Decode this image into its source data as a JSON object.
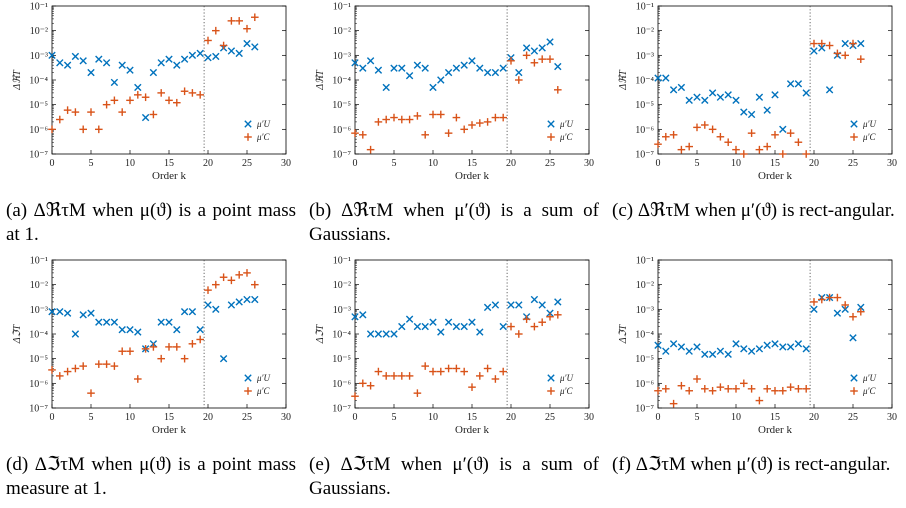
{
  "colors": {
    "mu_U": "#0072BD",
    "mu_C": "#D95319",
    "axis": "#000000",
    "divider": "#444444"
  },
  "chart_data": [
    {
      "type": "scatter",
      "caption": "(a)  ΔℜτΜ  when  μ(ϑ)  is  a point mass at 1.",
      "ylabel": "ΔℜT",
      "xlabel": "Order k",
      "xlim": [
        0,
        30
      ],
      "ylim_log10": [
        -7,
        -1
      ],
      "yscale": "log",
      "divider_x": 19.5,
      "series": [
        {
          "name": "μ′U",
          "marker": "x",
          "x": [
            0,
            1,
            2,
            3,
            4,
            5,
            6,
            7,
            8,
            9,
            10,
            11,
            12,
            13,
            14,
            15,
            16,
            17,
            18,
            19,
            20,
            21,
            22,
            23,
            24,
            25,
            26
          ],
          "y": [
            0.001,
            0.0005,
            0.0004,
            0.0009,
            0.0006,
            0.0002,
            0.0007,
            0.0005,
            8e-05,
            0.0004,
            0.00025,
            5e-05,
            3e-06,
            0.0002,
            0.0005,
            0.0007,
            0.0004,
            0.0007,
            0.001,
            0.0012,
            0.0008,
            0.0009,
            0.002,
            0.0015,
            0.0012,
            0.003,
            0.0022
          ]
        },
        {
          "name": "μ′C",
          "marker": "+",
          "x": [
            0,
            1,
            2,
            3,
            4,
            5,
            6,
            7,
            8,
            9,
            10,
            11,
            12,
            13,
            14,
            15,
            16,
            17,
            18,
            19,
            20,
            21,
            22,
            23,
            24,
            25,
            26
          ],
          "y": [
            1e-06,
            2.5e-06,
            6e-06,
            5e-06,
            1e-06,
            5e-06,
            1e-06,
            1e-05,
            1.5e-05,
            5e-06,
            1.5e-05,
            2.5e-05,
            2e-05,
            4e-06,
            3e-05,
            1.5e-05,
            1.2e-05,
            3.5e-05,
            3e-05,
            2.5e-05,
            0.004,
            0.01,
            0.0025,
            0.025,
            0.025,
            0.012,
            0.035
          ]
        }
      ]
    },
    {
      "type": "scatter",
      "caption": "(b)  ΔℜτΜ  when  μ′(ϑ)  is  a sum of Gaussians.",
      "ylabel": "ΔℜT",
      "xlabel": "Order k",
      "xlim": [
        0,
        30
      ],
      "ylim_log10": [
        -7,
        -1
      ],
      "yscale": "log",
      "divider_x": 19.5,
      "series": [
        {
          "name": "μ′U",
          "marker": "x",
          "x": [
            0,
            1,
            2,
            3,
            4,
            5,
            6,
            7,
            8,
            9,
            10,
            11,
            12,
            13,
            14,
            15,
            16,
            17,
            18,
            19,
            20,
            21,
            22,
            23,
            24,
            25,
            26
          ],
          "y": [
            0.0005,
            0.0003,
            0.0006,
            0.00025,
            5e-05,
            0.0003,
            0.0003,
            0.00015,
            0.0004,
            0.0003,
            5e-05,
            0.0001,
            0.0002,
            0.0003,
            0.0004,
            0.0006,
            0.0003,
            0.0002,
            0.0002,
            0.0003,
            0.0008,
            0.0002,
            0.002,
            0.0015,
            0.002,
            0.0035,
            0.00035
          ]
        },
        {
          "name": "μ′C",
          "marker": "+",
          "x": [
            0,
            1,
            2,
            3,
            4,
            5,
            6,
            7,
            8,
            9,
            10,
            11,
            12,
            13,
            14,
            15,
            16,
            17,
            18,
            19,
            20,
            21,
            22,
            23,
            24,
            25,
            26
          ],
          "y": [
            7e-07,
            6e-07,
            1.5e-07,
            2e-06,
            2.5e-06,
            3e-06,
            2.5e-06,
            2.5e-06,
            3.5e-06,
            6e-07,
            4e-06,
            4e-06,
            7e-07,
            3e-06,
            1e-06,
            1.5e-06,
            1.8e-06,
            2e-06,
            3e-06,
            3e-06,
            0.0006,
            0.0001,
            0.001,
            0.0005,
            0.0007,
            0.0007,
            4e-05
          ]
        }
      ]
    },
    {
      "type": "scatter",
      "caption": "(c)  ΔℜτΜ when μ′(ϑ) is rect-angular.",
      "ylabel": "ΔℜT",
      "xlabel": "Order k",
      "xlim": [
        0,
        30
      ],
      "ylim_log10": [
        -7,
        -1
      ],
      "yscale": "log",
      "divider_x": 19.5,
      "series": [
        {
          "name": "μ′U",
          "marker": "x",
          "x": [
            0,
            1,
            2,
            3,
            4,
            5,
            6,
            7,
            8,
            9,
            10,
            11,
            12,
            13,
            14,
            15,
            16,
            17,
            18,
            19,
            20,
            21,
            22,
            23,
            24,
            25,
            26
          ],
          "y": [
            0.00012,
            0.00012,
            4e-05,
            5e-05,
            1.5e-05,
            2e-05,
            1.5e-05,
            3e-05,
            2e-05,
            2.5e-05,
            1.5e-05,
            5e-06,
            4e-06,
            2e-05,
            6e-06,
            2.5e-05,
            1e-06,
            7e-05,
            7e-05,
            3e-05,
            0.0015,
            0.002,
            4e-05,
            0.001,
            0.003,
            0.0025,
            0.003
          ]
        },
        {
          "name": "μ′C",
          "marker": "+",
          "x": [
            0,
            1,
            2,
            3,
            4,
            5,
            6,
            7,
            8,
            9,
            10,
            11,
            12,
            13,
            14,
            15,
            16,
            17,
            18,
            19,
            20,
            21,
            22,
            23,
            24,
            25,
            26
          ],
          "y": [
            2.5e-07,
            5e-07,
            6e-07,
            1.5e-07,
            2e-07,
            1.2e-06,
            1.5e-06,
            1e-06,
            5e-07,
            3e-07,
            1.5e-07,
            1e-07,
            7e-07,
            1.5e-07,
            2e-07,
            6e-07,
            1e-07,
            7e-07,
            3e-07,
            1e-07,
            0.003,
            0.003,
            0.0025,
            0.0012,
            0.001,
            0.003,
            0.0007
          ]
        }
      ]
    },
    {
      "type": "scatter",
      "caption": "(d)  ΔℑτΜ  when  μ(ϑ)  is  a point mass measure at 1.",
      "ylabel": "ΔℑT",
      "xlabel": "Order k",
      "xlim": [
        0,
        30
      ],
      "ylim_log10": [
        -7,
        -1
      ],
      "yscale": "log",
      "divider_x": 19.5,
      "series": [
        {
          "name": "μ′U",
          "marker": "x",
          "x": [
            0,
            1,
            2,
            3,
            4,
            5,
            6,
            7,
            8,
            9,
            10,
            11,
            12,
            13,
            14,
            15,
            16,
            17,
            18,
            19,
            20,
            21,
            22,
            23,
            24,
            25,
            26
          ],
          "y": [
            0.0008,
            0.0008,
            0.0007,
            0.0001,
            0.0006,
            0.0007,
            0.0003,
            0.0003,
            0.0003,
            0.00015,
            0.00015,
            0.00012,
            2.5e-05,
            4e-05,
            0.0003,
            0.0003,
            0.00015,
            0.0008,
            0.0008,
            0.00015,
            0.0015,
            0.001,
            1e-05,
            0.0015,
            0.002,
            0.0025,
            0.0025
          ]
        },
        {
          "name": "μ′C",
          "marker": "+",
          "x": [
            0,
            1,
            2,
            3,
            4,
            5,
            6,
            7,
            8,
            9,
            10,
            11,
            12,
            13,
            14,
            15,
            16,
            17,
            18,
            19,
            20,
            21,
            22,
            23,
            24,
            25,
            26
          ],
          "y": [
            3.5e-06,
            2e-06,
            3e-06,
            4e-06,
            5e-06,
            4e-07,
            6e-06,
            6e-06,
            5e-06,
            2e-05,
            2e-05,
            1.5e-06,
            2.5e-05,
            3e-05,
            1e-05,
            3e-05,
            3e-05,
            1e-05,
            4e-05,
            6e-05,
            0.006,
            0.01,
            0.02,
            0.015,
            0.025,
            0.03,
            0.01
          ]
        }
      ]
    },
    {
      "type": "scatter",
      "caption": "(e) ΔℑτΜ when μ′(ϑ) is a sum of Gaussians.",
      "ylabel": "ΔℑT",
      "xlabel": "Order k",
      "xlim": [
        0,
        30
      ],
      "ylim_log10": [
        -7,
        -1
      ],
      "yscale": "log",
      "divider_x": 19.5,
      "series": [
        {
          "name": "μ′U",
          "marker": "x",
          "x": [
            0,
            1,
            2,
            3,
            4,
            5,
            6,
            7,
            8,
            9,
            10,
            11,
            12,
            13,
            14,
            15,
            16,
            17,
            18,
            19,
            20,
            21,
            22,
            23,
            24,
            25,
            26
          ],
          "y": [
            0.0005,
            0.0006,
            0.0001,
            0.0001,
            0.0001,
            0.0001,
            0.0002,
            0.0004,
            0.0002,
            0.0002,
            0.0003,
            0.00012,
            0.0003,
            0.0002,
            0.0002,
            0.0003,
            0.00012,
            0.0012,
            0.0015,
            0.0002,
            0.0015,
            0.0015,
            0.0005,
            0.0025,
            0.0015,
            0.0007,
            0.002
          ]
        },
        {
          "name": "μ′C",
          "marker": "+",
          "x": [
            0,
            1,
            2,
            3,
            4,
            5,
            6,
            7,
            8,
            9,
            10,
            11,
            12,
            13,
            14,
            15,
            16,
            17,
            18,
            19,
            20,
            21,
            22,
            23,
            24,
            25,
            26
          ],
          "y": [
            3e-07,
            1e-06,
            8e-07,
            3e-06,
            2e-06,
            2e-06,
            2e-06,
            2e-06,
            4e-07,
            5e-06,
            3e-06,
            3e-06,
            4e-06,
            4e-06,
            3e-06,
            7e-07,
            2e-06,
            4e-06,
            1.5e-06,
            3e-06,
            0.0002,
            0.0001,
            0.0004,
            0.0002,
            0.0003,
            0.0005,
            0.0006
          ]
        }
      ]
    },
    {
      "type": "scatter",
      "caption": "(f)  ΔℑτΜ when μ′(ϑ) is rect-angular.",
      "ylabel": "ΔℑT",
      "xlabel": "Order k",
      "xlim": [
        0,
        30
      ],
      "ylim_log10": [
        -7,
        -1
      ],
      "yscale": "log",
      "divider_x": 19.5,
      "series": [
        {
          "name": "μ′U",
          "marker": "x",
          "x": [
            0,
            1,
            2,
            3,
            4,
            5,
            6,
            7,
            8,
            9,
            10,
            11,
            12,
            13,
            14,
            15,
            16,
            17,
            18,
            19,
            20,
            21,
            22,
            23,
            24,
            25,
            26
          ],
          "y": [
            3.5e-05,
            2e-05,
            4e-05,
            3e-05,
            2e-05,
            3e-05,
            1.5e-05,
            1.5e-05,
            2e-05,
            1.5e-05,
            4e-05,
            2.5e-05,
            2e-05,
            2.5e-05,
            3.5e-05,
            4e-05,
            3e-05,
            3e-05,
            4e-05,
            2.5e-05,
            0.001,
            0.003,
            0.003,
            0.0007,
            0.001,
            7e-05,
            0.0012
          ]
        },
        {
          "name": "μ′C",
          "marker": "+",
          "x": [
            0,
            1,
            2,
            3,
            4,
            5,
            6,
            7,
            8,
            9,
            10,
            11,
            12,
            13,
            14,
            15,
            16,
            17,
            18,
            19,
            20,
            21,
            22,
            23,
            24,
            25,
            26
          ],
          "y": [
            5e-07,
            6e-07,
            1.5e-07,
            8e-07,
            5e-07,
            1.5e-06,
            6e-07,
            5e-07,
            7e-07,
            6e-07,
            6e-07,
            1e-06,
            6e-07,
            2e-07,
            6e-07,
            5e-07,
            5e-07,
            7e-07,
            6e-07,
            6e-07,
            0.002,
            0.0025,
            0.003,
            0.003,
            0.0015,
            0.0005,
            0.0008
          ]
        }
      ]
    }
  ],
  "axis_text": {
    "xticks": [
      "0",
      "5",
      "10",
      "15",
      "20",
      "25",
      "30"
    ],
    "yticks": [
      "10⁻⁷",
      "10⁻⁶",
      "10⁻⁵",
      "10⁻⁴",
      "10⁻³",
      "10⁻²",
      "10⁻¹"
    ]
  }
}
